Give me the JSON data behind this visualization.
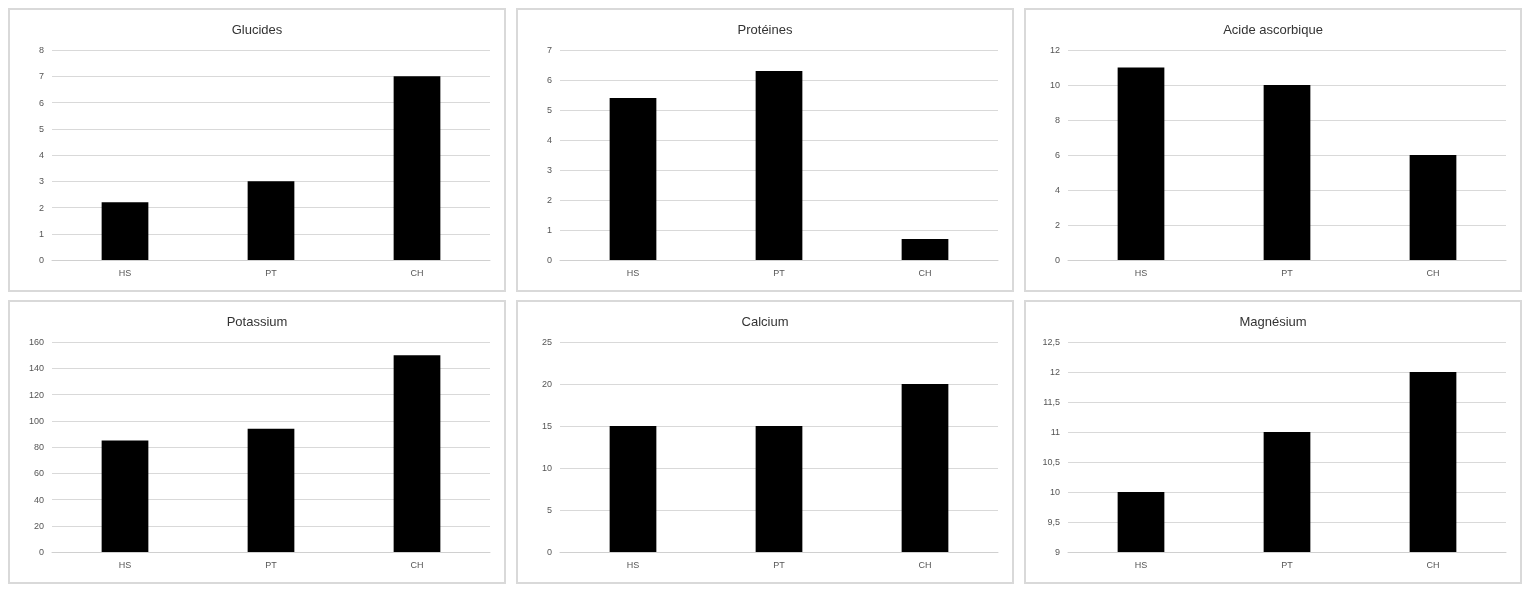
{
  "chart_data": [
    {
      "type": "bar",
      "title": "Glucides",
      "categories": [
        "HS",
        "PT",
        "CH"
      ],
      "values": [
        2.2,
        3,
        7
      ],
      "color": "#000000",
      "ylim": [
        0,
        8
      ],
      "yticks": [
        0,
        1,
        2,
        3,
        4,
        5,
        6,
        7,
        8
      ],
      "grid": "y"
    },
    {
      "type": "bar",
      "title": "Protéines",
      "categories": [
        "HS",
        "PT",
        "CH"
      ],
      "values": [
        5.4,
        6.3,
        0.7
      ],
      "color": "#000000",
      "ylim": [
        0,
        7
      ],
      "yticks": [
        0,
        1,
        2,
        3,
        4,
        5,
        6,
        7
      ],
      "grid": "y"
    },
    {
      "type": "bar",
      "title": "Acide ascorbique",
      "categories": [
        "HS",
        "PT",
        "CH"
      ],
      "values": [
        11,
        10,
        6
      ],
      "color": "#000000",
      "ylim": [
        0,
        12
      ],
      "yticks": [
        0,
        2,
        4,
        6,
        8,
        10,
        12
      ],
      "grid": "y"
    },
    {
      "type": "bar",
      "title": "Potassium",
      "categories": [
        "HS",
        "PT",
        "CH"
      ],
      "values": [
        85,
        94,
        150
      ],
      "color": "#000000",
      "ylim": [
        0,
        160
      ],
      "yticks": [
        0,
        20,
        40,
        60,
        80,
        100,
        120,
        140,
        160
      ],
      "grid": "y"
    },
    {
      "type": "bar",
      "title": "Calcium",
      "categories": [
        "HS",
        "PT",
        "CH"
      ],
      "values": [
        15,
        15,
        20
      ],
      "color": "#000000",
      "ylim": [
        0,
        25
      ],
      "yticks": [
        0,
        5,
        10,
        15,
        20,
        25
      ],
      "grid": "y"
    },
    {
      "type": "bar",
      "title": "Magnésium",
      "categories": [
        "HS",
        "PT",
        "CH"
      ],
      "values": [
        10,
        11,
        12
      ],
      "color": "#000000",
      "ylim": [
        9,
        12.5
      ],
      "yticks": [
        9,
        {
          "value": 9.5,
          "label": "9,5"
        },
        10,
        {
          "value": 10.5,
          "label": "10,5"
        },
        11,
        {
          "value": 11.5,
          "label": "11,5"
        },
        12,
        {
          "value": 12.5,
          "label": "12,5"
        }
      ],
      "grid": "y"
    }
  ]
}
